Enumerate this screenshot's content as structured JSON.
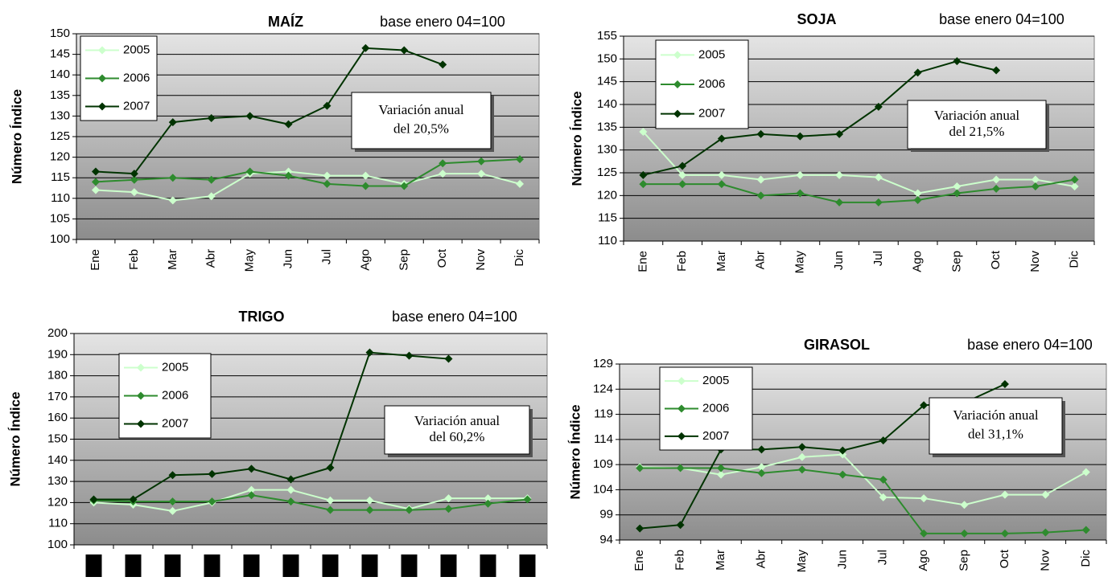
{
  "chart_data": [
    {
      "type": "line",
      "title": "MAÍZ",
      "subtitle": "base enero 04=100",
      "y_label": "Número Índice",
      "categories": [
        "Ene",
        "Feb",
        "Mar",
        "Abr",
        "May",
        "Jun",
        "Jul",
        "Ago",
        "Sep",
        "Oct",
        "Nov",
        "Dic"
      ],
      "ylim": [
        100,
        150
      ],
      "yticks": [
        100,
        105,
        110,
        115,
        120,
        125,
        130,
        135,
        140,
        145,
        150
      ],
      "grid": true,
      "annotation": [
        "Variación anual",
        "del 20,5%"
      ],
      "series": [
        {
          "name": "2005",
          "color": "#ccffcc",
          "values": [
            112,
            111.5,
            109.5,
            110.5,
            116,
            116.5,
            115.5,
            115.5,
            113.5,
            116,
            116,
            113.5
          ]
        },
        {
          "name": "2006",
          "color": "#2e8b2e",
          "values": [
            114,
            114.5,
            115,
            114.5,
            116.5,
            115.5,
            113.5,
            113,
            113,
            118.5,
            119,
            119.5
          ]
        },
        {
          "name": "2007",
          "color": "#003300",
          "values": [
            116.5,
            116,
            128.5,
            129.5,
            130,
            128,
            132.5,
            146.5,
            146,
            142.5,
            null,
            null
          ]
        }
      ]
    },
    {
      "type": "line",
      "title": "SOJA",
      "subtitle": "base enero 04=100",
      "y_label": "Número Índice",
      "categories": [
        "Ene",
        "Feb",
        "Mar",
        "Abr",
        "May",
        "Jun",
        "Jul",
        "Ago",
        "Sep",
        "Oct",
        "Nov",
        "Dic"
      ],
      "ylim": [
        110,
        155
      ],
      "yticks": [
        110,
        115,
        120,
        125,
        130,
        135,
        140,
        145,
        150,
        155
      ],
      "grid": true,
      "annotation": [
        "Variación anual",
        "del 21,5%"
      ],
      "series": [
        {
          "name": "2005",
          "color": "#ccffcc",
          "values": [
            134,
            124.5,
            124.5,
            123.5,
            124.5,
            124.5,
            124,
            120.5,
            122,
            123.5,
            123.5,
            122
          ]
        },
        {
          "name": "2006",
          "color": "#2e8b2e",
          "values": [
            122.5,
            122.5,
            122.5,
            120,
            120.5,
            118.5,
            118.5,
            119,
            120.5,
            121.5,
            122,
            123.5
          ]
        },
        {
          "name": "2007",
          "color": "#003300",
          "values": [
            124.5,
            126.5,
            132.5,
            133.5,
            133,
            133.5,
            139.5,
            147,
            149.5,
            147.5,
            null,
            null
          ]
        }
      ]
    },
    {
      "type": "line",
      "title": "TRIGO",
      "subtitle": "base enero 04=100",
      "y_label": "Número Índice",
      "categories": [
        null,
        null,
        null,
        null,
        null,
        null,
        null,
        null,
        null,
        null,
        null,
        null
      ],
      "ylim": [
        100,
        200
      ],
      "yticks": [
        100,
        110,
        120,
        130,
        140,
        150,
        160,
        170,
        180,
        190,
        200
      ],
      "grid": true,
      "annotation": [
        "Variación  anual",
        "del  60,2%"
      ],
      "series": [
        {
          "name": "2005",
          "color": "#ccffcc",
          "values": [
            120,
            119,
            116,
            120,
            126,
            126,
            121,
            121,
            117,
            122,
            122,
            122
          ]
        },
        {
          "name": "2006",
          "color": "#2e8b2e",
          "values": [
            121,
            120.5,
            120.5,
            120.5,
            123.5,
            120.5,
            116.5,
            116.5,
            116.5,
            117,
            119.5,
            121.5
          ]
        },
        {
          "name": "2007",
          "color": "#003300",
          "values": [
            121.5,
            121.5,
            133,
            133.5,
            136,
            131,
            136.5,
            191,
            189.5,
            188,
            null,
            null
          ]
        }
      ]
    },
    {
      "type": "line",
      "title": "GIRASOL",
      "subtitle": "base enero 04=100",
      "y_label": "Número Índice",
      "categories": [
        "Ene",
        "Feb",
        "Mar",
        "Abr",
        "May",
        "Jun",
        "Jul",
        "Ago",
        "Sep",
        "Oct",
        "Nov",
        "Dic"
      ],
      "ylim": [
        94,
        129
      ],
      "yticks": [
        94,
        99,
        104,
        109,
        114,
        119,
        124,
        129
      ],
      "grid": true,
      "annotation": [
        "Variación anual",
        "del 31,1%"
      ],
      "series": [
        {
          "name": "2005",
          "color": "#ccffcc",
          "values": [
            108.5,
            108.3,
            107,
            108.5,
            110.5,
            111,
            102.5,
            102.3,
            101,
            103,
            103,
            107.5
          ]
        },
        {
          "name": "2006",
          "color": "#2e8b2e",
          "values": [
            108.3,
            108.3,
            108.3,
            107.3,
            108,
            107,
            106,
            95.3,
            95.3,
            95.3,
            95.5,
            96
          ]
        },
        {
          "name": "2007",
          "color": "#003300",
          "values": [
            96.3,
            97,
            112,
            112,
            112.5,
            111.8,
            113.8,
            120.8,
            121.3,
            125,
            null,
            null
          ]
        }
      ]
    }
  ]
}
